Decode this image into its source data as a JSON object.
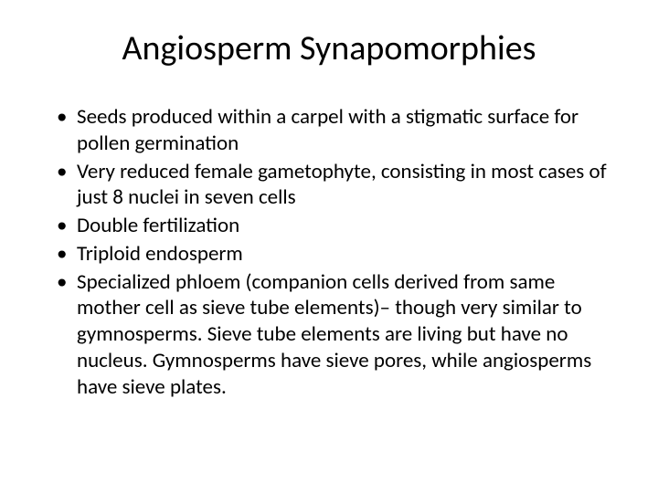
{
  "slide": {
    "title": "Angiosperm Synapomorphies",
    "title_fontsize": 38,
    "title_color": "#000000",
    "background_color": "#ffffff",
    "bullets": [
      "Seeds produced within a carpel with a stigmatic surface for pollen germination",
      "Very reduced female gametophyte, consisting in most cases of just 8 nuclei in seven cells",
      "Double fertilization",
      "Triploid endosperm",
      "Specialized phloem (companion cells derived from same mother cell as sieve tube elements)– though very similar to gymnosperms.  Sieve tube elements are living but have no nucleus.  Gymnosperms have sieve pores, while angiosperms have sieve plates."
    ],
    "bullet_fontsize": 23,
    "bullet_color": "#000000",
    "font_family": "Calibri"
  }
}
